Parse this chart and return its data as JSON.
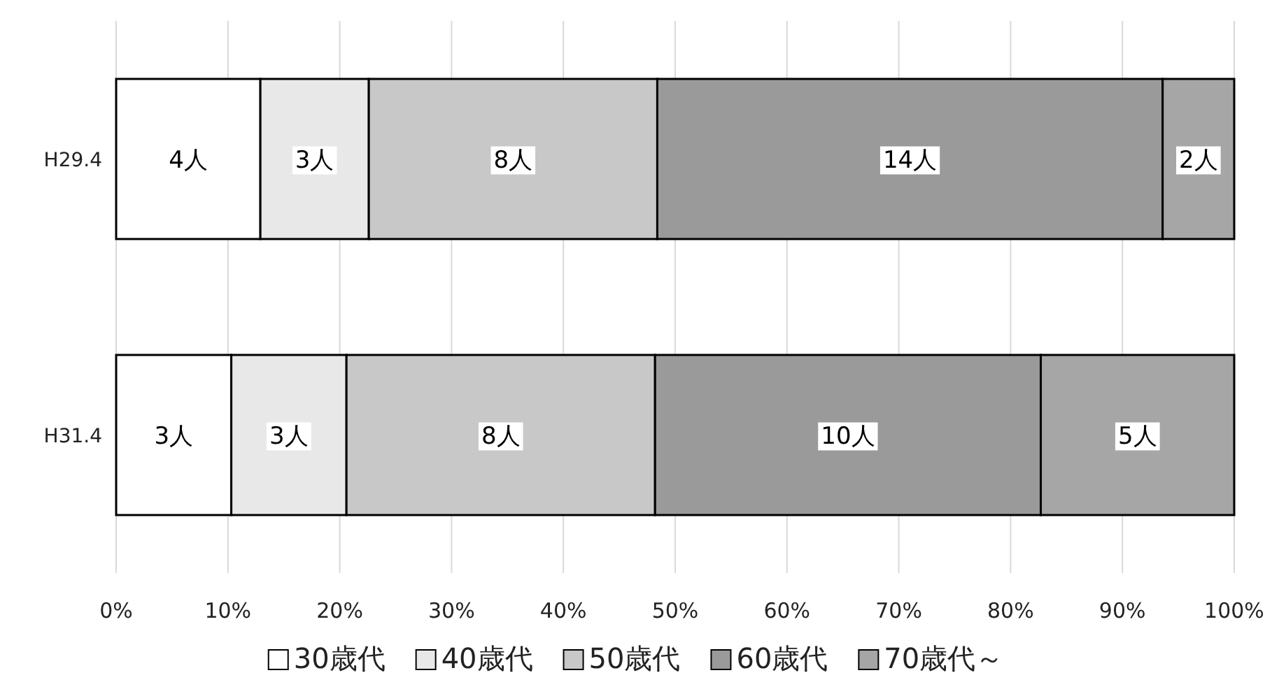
{
  "chart_data": {
    "type": "bar",
    "orientation": "horizontal",
    "stacked": true,
    "categories": [
      "H29.4",
      "H31.4"
    ],
    "series": [
      {
        "name": "30歳代",
        "color": "#ffffff",
        "values": [
          12.9,
          10.3
        ]
      },
      {
        "name": "40歳代",
        "color": "#e8e8e8",
        "values": [
          9.7,
          10.3
        ]
      },
      {
        "name": "50歳代",
        "color": "#c8c8c8",
        "values": [
          25.8,
          27.6
        ]
      },
      {
        "name": "60歳代",
        "color": "#9a9a9a",
        "values": [
          45.2,
          34.5
        ]
      },
      {
        "name": "70歳代～",
        "color": "#a6a6a6",
        "values": [
          6.4,
          17.3
        ]
      }
    ],
    "annotations": [
      {
        "text": "4人",
        "x": 6.45,
        "y": "H29.4"
      },
      {
        "text": "3人",
        "x": 17.75,
        "y": "H29.4"
      },
      {
        "text": "8人",
        "x": 35.5,
        "y": "H29.4"
      },
      {
        "text": "14人",
        "x": 71.0,
        "y": "H29.4"
      },
      {
        "text": "2人",
        "x": 96.8,
        "y": "H29.4"
      },
      {
        "text": "3人",
        "x": 5.15,
        "y": "H31.4"
      },
      {
        "text": "3人",
        "x": 15.45,
        "y": "H31.4"
      },
      {
        "text": "8人",
        "x": 34.4,
        "y": "H31.4"
      },
      {
        "text": "10人",
        "x": 65.45,
        "y": "H31.4"
      },
      {
        "text": "5人",
        "x": 91.35,
        "y": "H31.4"
      }
    ],
    "xlim": [
      0,
      100
    ],
    "xticks": [
      {
        "value": 0,
        "label": "0%"
      },
      {
        "value": 10,
        "label": "10%"
      },
      {
        "value": 20,
        "label": "20%"
      },
      {
        "value": 30,
        "label": "30%"
      },
      {
        "value": 40,
        "label": "40%"
      },
      {
        "value": 50,
        "label": "50%"
      },
      {
        "value": 60,
        "label": "60%"
      },
      {
        "value": 70,
        "label": "70%"
      },
      {
        "value": 80,
        "label": "80%"
      },
      {
        "value": 90,
        "label": "90%"
      },
      {
        "value": 100,
        "label": "100%"
      }
    ],
    "grid": "x",
    "legend": "bottom"
  }
}
